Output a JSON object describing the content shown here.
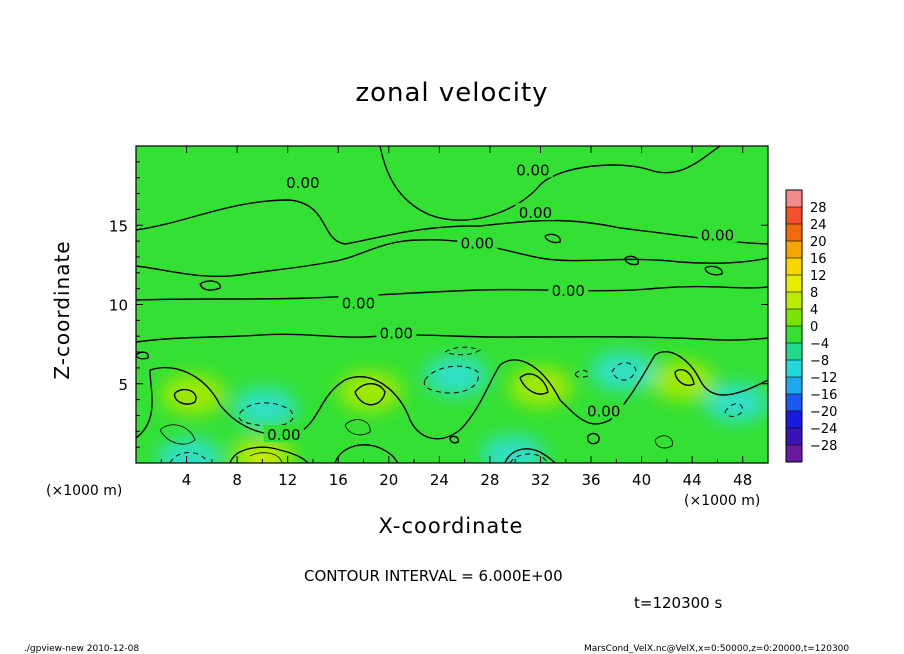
{
  "chart_data": {
    "type": "heatmap",
    "title": "zonal velocity",
    "xlabel": "X-coordinate",
    "ylabel": "Z-coordinate",
    "x_unit": "(×1000 m)",
    "xlim": [
      0,
      50
    ],
    "ylim": [
      0,
      20
    ],
    "x_ticks": [
      4,
      8,
      12,
      16,
      20,
      24,
      28,
      32,
      36,
      40,
      44,
      48
    ],
    "y_ticks": [
      5,
      10,
      15
    ],
    "colorbar": {
      "labels": [
        "28",
        "24",
        "20",
        "16",
        "12",
        "8",
        "4",
        "0",
        "−4",
        "−8",
        "−12",
        "−16",
        "−20",
        "−24",
        "−28"
      ],
      "levels": [
        30,
        26,
        22,
        18,
        14,
        10,
        6,
        2,
        -2,
        -6,
        -10,
        -14,
        -18,
        -22,
        -26,
        -30
      ],
      "colors": [
        "#f48a8a",
        "#f4502d",
        "#f06a10",
        "#f5a400",
        "#f8d800",
        "#e8ec00",
        "#b8ec00",
        "#7ce400",
        "#33e033",
        "#22d88a",
        "#22d8d8",
        "#1ea8f0",
        "#1a5af0",
        "#1a1adc",
        "#3a14b4",
        "#6a1aa0"
      ]
    },
    "contour_labels": [
      {
        "text": "0.00",
        "x": 13.2,
        "z": 17.6
      },
      {
        "text": "0.00",
        "x": 31.4,
        "z": 18.4
      },
      {
        "text": "0.00",
        "x": 31.6,
        "z": 15.7
      },
      {
        "text": "0.00",
        "x": 27.0,
        "z": 13.8
      },
      {
        "text": "0.00",
        "x": 46.0,
        "z": 14.3
      },
      {
        "text": "0.00",
        "x": 34.2,
        "z": 10.8
      },
      {
        "text": "0.00",
        "x": 17.6,
        "z": 10.0
      },
      {
        "text": "0.00",
        "x": 20.6,
        "z": 8.1
      },
      {
        "text": "0.00",
        "x": 11.7,
        "z": 1.7
      },
      {
        "text": "0.00",
        "x": 37.0,
        "z": 3.2
      }
    ],
    "features": [
      {
        "type": "positive",
        "x": 4.5,
        "z": 4.3
      },
      {
        "type": "positive",
        "x": 10.0,
        "z": 0.4
      },
      {
        "type": "positive",
        "x": 18.5,
        "z": 4.5
      },
      {
        "type": "positive",
        "x": 32.0,
        "z": 4.8
      },
      {
        "type": "positive",
        "x": 43.2,
        "z": 5.2
      },
      {
        "type": "negative",
        "x": 10.2,
        "z": 3.5
      },
      {
        "type": "negative",
        "x": 25.3,
        "z": 5.5
      },
      {
        "type": "negative",
        "x": 38.5,
        "z": 5.8
      },
      {
        "type": "negative",
        "x": 4.2,
        "z": 0.3
      },
      {
        "type": "negative",
        "x": 29.8,
        "z": 0.5
      },
      {
        "type": "negative",
        "x": 47.5,
        "z": 3.8
      }
    ]
  },
  "contour_interval_text": "CONTOUR INTERVAL = 6.000E+00",
  "time_text": "t=120300 s",
  "footer": {
    "left": "./gpview-new  2010-12-08",
    "right": "MarsCond_VelX.nc@VelX,x=0:50000,z=0:20000,t=120300"
  }
}
